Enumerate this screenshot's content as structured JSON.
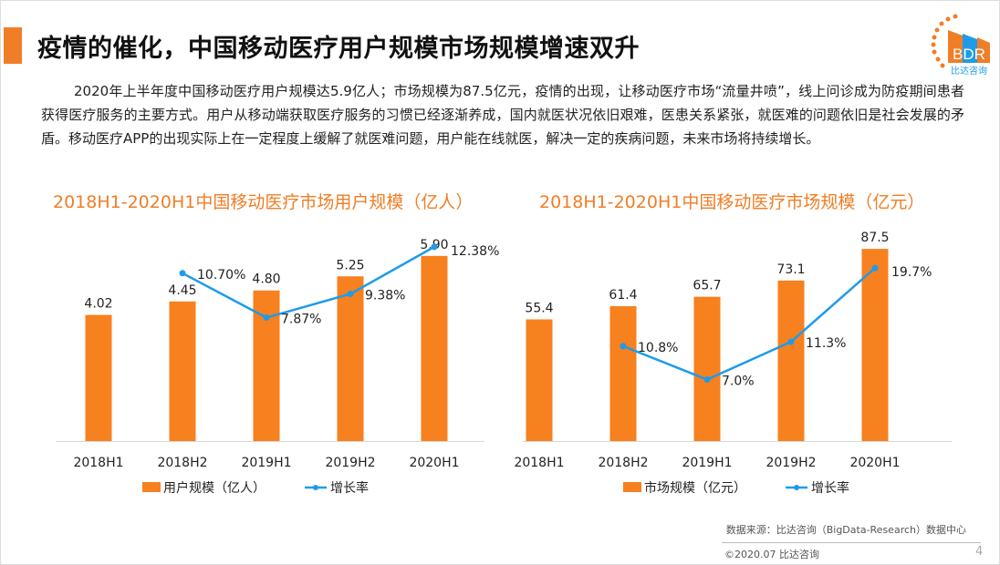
{
  "header": {
    "title": "疫情的催化，中国移动医疗用户规模市场规模增速双升",
    "logo_text": "BDR",
    "logo_sub": "比达咨询"
  },
  "paragraph": "2020年上半年度中国移动医疗用户规模达5.9亿人；市场规模为87.5亿元，疫情的出现，让移动医疗市场“流量井喷”，线上问诊成为防疫期间患者获得医疗服务的主要方式。用户从移动端获取医疗服务的习惯已经逐渐养成，国内就医状况依旧艰难，医患关系紧张，就医难的问题依旧是社会发展的矛盾。移动医疗APP的出现实际上在一定程度上缓解了就医难问题，用户能在线就医，解决一定的疾病问题，未来市场将持续增长。",
  "colors": {
    "bar": "#F7801F",
    "line": "#1E9BEA",
    "title": "#F07E26"
  },
  "chart_data": [
    {
      "type": "bar",
      "title": "2018H1-2020H1中国移动医疗市场用户规模（亿人）",
      "categories": [
        "2018H1",
        "2018H2",
        "2019H1",
        "2019H2",
        "2020H1"
      ],
      "series": [
        {
          "name": "用户规模（亿人）",
          "type": "bar",
          "values": [
            4.02,
            4.45,
            4.8,
            5.25,
            5.9
          ],
          "labels": [
            "4.02",
            "4.45",
            "4.80",
            "5.25",
            "5.90"
          ]
        },
        {
          "name": "增长率",
          "type": "line",
          "values": [
            null,
            10.7,
            7.87,
            9.38,
            12.38
          ],
          "labels": [
            "",
            "10.70%",
            "7.87%",
            "9.38%",
            "12.38%"
          ]
        }
      ],
      "ylim": [
        0,
        7
      ],
      "y2lim": [
        0,
        14
      ],
      "grid": false,
      "legend": "bottom"
    },
    {
      "type": "bar",
      "title": "2018H1-2020H1中国移动医疗市场规模（亿元）",
      "categories": [
        "2018H1",
        "2018H2",
        "2019H1",
        "2019H2",
        "2020H1"
      ],
      "series": [
        {
          "name": "市场规模（亿元）",
          "type": "bar",
          "values": [
            55.4,
            61.4,
            65.7,
            73.1,
            87.5
          ],
          "labels": [
            "55.4",
            "61.4",
            "65.7",
            "73.1",
            "87.5"
          ]
        },
        {
          "name": "增长率",
          "type": "line",
          "values": [
            null,
            10.8,
            7.0,
            11.3,
            19.7
          ],
          "labels": [
            "",
            "10.8%",
            "7.0%",
            "11.3%",
            "19.7%"
          ]
        }
      ],
      "ylim": [
        0,
        100
      ],
      "y2lim": [
        0,
        25
      ],
      "grid": false,
      "legend": "bottom"
    }
  ],
  "footer": {
    "source": "数据来源：比达咨询（BigData-Research）数据中心",
    "copyright": "©2020.07 比达咨询",
    "page": "4"
  }
}
